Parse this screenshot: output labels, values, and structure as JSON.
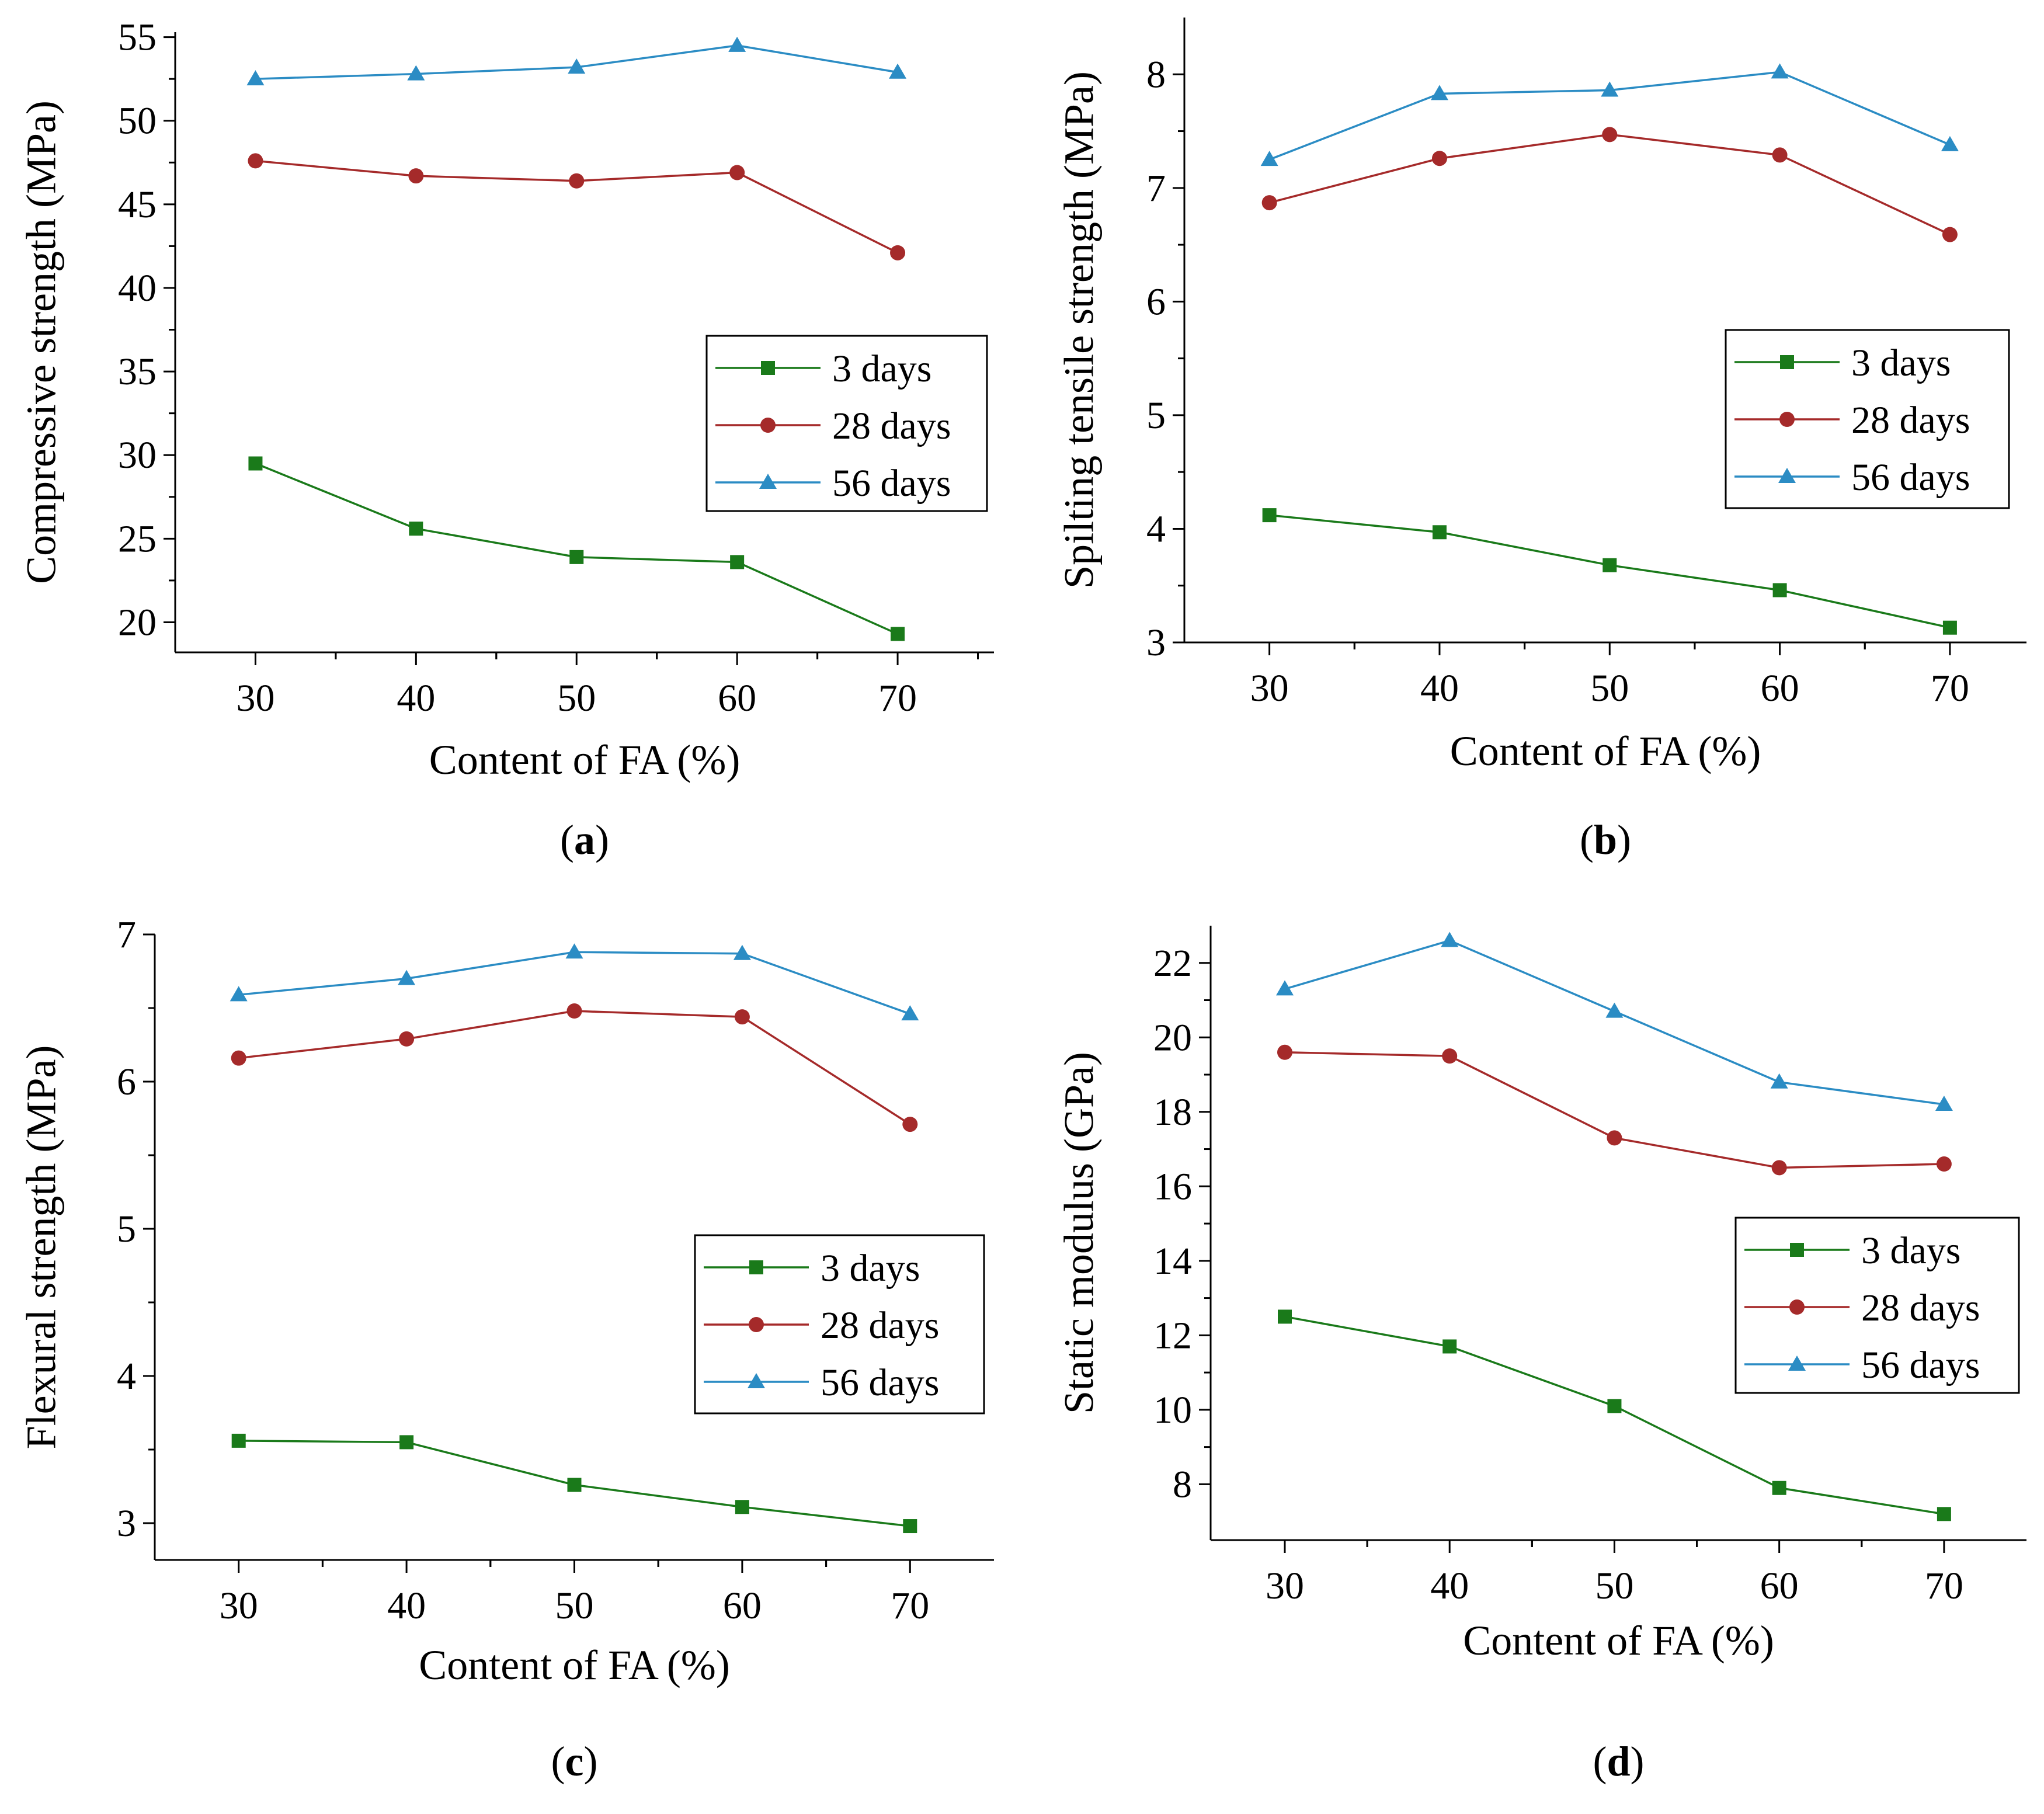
{
  "figure": {
    "panels": [
      {
        "id": "a",
        "open": "(",
        "letter": "a",
        "close": ")"
      },
      {
        "id": "b",
        "open": "(",
        "letter": "b",
        "close": ")"
      },
      {
        "id": "c",
        "open": "(",
        "letter": "c",
        "close": ")"
      },
      {
        "id": "d",
        "open": "(",
        "letter": "d",
        "close": ")"
      }
    ]
  },
  "colors": {
    "3 days": "#1a7a1a",
    "28 days": "#a52a2a",
    "56 days": "#2b8cc4"
  },
  "chart_data": [
    {
      "panel": "a",
      "type": "line",
      "xlabel": "Content of FA (%)",
      "ylabel": "Compressive strength (MPa)",
      "x": [
        30,
        40,
        50,
        60,
        70
      ],
      "xlim": [
        25,
        76
      ],
      "xticks": [
        30,
        40,
        50,
        60,
        70
      ],
      "ylim": [
        18.2,
        55.3
      ],
      "yticks": [
        20,
        25,
        30,
        35,
        40,
        45,
        50,
        55
      ],
      "grid": false,
      "legend": "center-right",
      "series": [
        {
          "name": "3 days",
          "marker": "square",
          "values": [
            29.5,
            25.6,
            23.9,
            23.6,
            19.3
          ]
        },
        {
          "name": "28 days",
          "marker": "circle",
          "values": [
            47.6,
            46.7,
            46.4,
            46.9,
            42.1
          ]
        },
        {
          "name": "56 days",
          "marker": "triangle",
          "values": [
            52.5,
            52.8,
            53.2,
            54.5,
            52.9
          ]
        }
      ]
    },
    {
      "panel": "b",
      "type": "line",
      "xlabel": "Content of FA (%)",
      "ylabel": "Spilting tensile strength (MPa)",
      "x": [
        30,
        40,
        50,
        60,
        70
      ],
      "xlim": [
        25,
        74.5
      ],
      "xticks": [
        30,
        40,
        50,
        60,
        70
      ],
      "ylim": [
        3.0,
        8.5
      ],
      "yticks": [
        3,
        4,
        5,
        6,
        7,
        8
      ],
      "grid": false,
      "legend": "center-right",
      "series": [
        {
          "name": "3 days",
          "marker": "square",
          "values": [
            4.12,
            3.97,
            3.68,
            3.46,
            3.13
          ]
        },
        {
          "name": "28 days",
          "marker": "circle",
          "values": [
            6.87,
            7.26,
            7.47,
            7.29,
            6.59
          ]
        },
        {
          "name": "56 days",
          "marker": "triangle",
          "values": [
            7.25,
            7.83,
            7.86,
            8.02,
            7.38
          ]
        }
      ]
    },
    {
      "panel": "c",
      "type": "line",
      "xlabel": "Content of FA (%)",
      "ylabel": "Flexural strength (MPa)",
      "x": [
        30,
        40,
        50,
        60,
        70
      ],
      "xlim": [
        25,
        75
      ],
      "xticks": [
        30,
        40,
        50,
        60,
        70
      ],
      "ylim": [
        2.75,
        7.0
      ],
      "yticks": [
        3,
        4,
        5,
        6,
        7
      ],
      "grid": false,
      "legend": "center-right",
      "series": [
        {
          "name": "3 days",
          "marker": "square",
          "values": [
            3.56,
            3.55,
            3.26,
            3.11,
            2.98
          ]
        },
        {
          "name": "28 days",
          "marker": "circle",
          "values": [
            6.16,
            6.29,
            6.48,
            6.44,
            5.71
          ]
        },
        {
          "name": "56 days",
          "marker": "triangle",
          "values": [
            6.59,
            6.7,
            6.88,
            6.87,
            6.46
          ]
        }
      ]
    },
    {
      "panel": "d",
      "type": "line",
      "xlabel": "Content of FA (%)",
      "ylabel": "Static modulus (GPa)",
      "x": [
        30,
        40,
        50,
        60,
        70
      ],
      "xlim": [
        25.5,
        75
      ],
      "xticks": [
        30,
        40,
        50,
        60,
        70
      ],
      "ylim": [
        6.5,
        23.0
      ],
      "yticks": [
        8,
        10,
        12,
        14,
        16,
        18,
        20,
        22
      ],
      "grid": false,
      "legend": "center-right",
      "series": [
        {
          "name": "3 days",
          "marker": "square",
          "values": [
            12.5,
            11.7,
            10.1,
            7.9,
            7.2
          ]
        },
        {
          "name": "28 days",
          "marker": "circle",
          "values": [
            19.6,
            19.5,
            17.3,
            16.5,
            16.6
          ]
        },
        {
          "name": "56 days",
          "marker": "triangle",
          "values": [
            21.3,
            22.6,
            20.7,
            18.8,
            18.2
          ]
        }
      ]
    }
  ]
}
